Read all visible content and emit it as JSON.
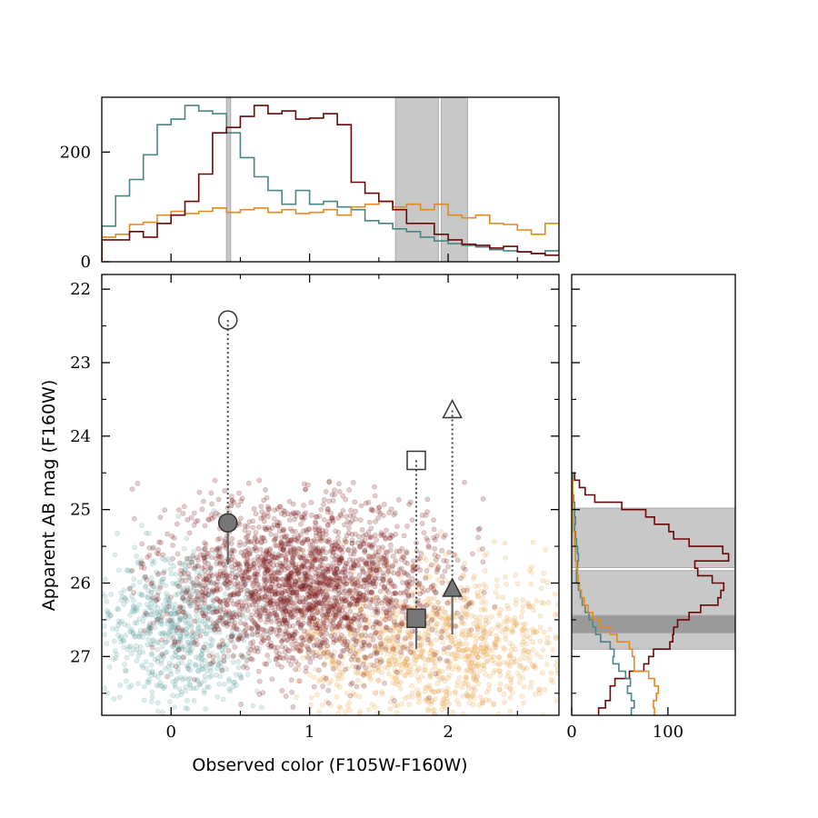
{
  "chart_data": [
    {
      "id": "main",
      "type": "scatter",
      "xlabel": "Observed color (F105W-F160W)",
      "ylabel": "Apparent AB mag (F160W)",
      "xlim": [
        -0.5,
        2.8
      ],
      "ylim": [
        27.8,
        21.8
      ],
      "inverted_y": true,
      "xticks": [
        0,
        1,
        2
      ],
      "yticks": [
        22,
        23,
        24,
        25,
        26,
        27
      ],
      "xtick_labels": [
        "0",
        "1",
        "2"
      ],
      "ytick_labels": [
        "22",
        "23",
        "24",
        "25",
        "26",
        "27"
      ],
      "point_clouds": [
        {
          "color": "#5f9ea0",
          "n": 700,
          "center": [
            0.05,
            26.6
          ],
          "spread": [
            0.28,
            0.55
          ],
          "xrange": [
            -0.5,
            0.8
          ],
          "yrange": [
            24.8,
            27.8
          ]
        },
        {
          "color": "#e8a040",
          "n": 1100,
          "center": [
            1.9,
            26.9
          ],
          "spread": [
            0.55,
            0.55
          ],
          "xrange": [
            0.9,
            2.8
          ],
          "yrange": [
            25.2,
            27.8
          ]
        },
        {
          "color": "#7a1a1a",
          "n": 2300,
          "center": [
            0.95,
            26.0
          ],
          "spread": [
            0.5,
            0.55
          ],
          "xrange": [
            -0.3,
            2.4
          ],
          "yrange": [
            24.6,
            27.8
          ]
        }
      ],
      "markers": [
        {
          "shape": "circle",
          "x": 0.41,
          "y_open": 22.42,
          "y_filled": 25.18,
          "y_err_end": 25.75,
          "filled_dir": "down"
        },
        {
          "shape": "square",
          "x": 1.77,
          "y_open": 24.33,
          "y_filled": 26.48,
          "y_err_end": 26.9,
          "filled_dir": "down"
        },
        {
          "shape": "triangle",
          "x": 2.03,
          "y_open": 23.65,
          "y_filled": 26.08,
          "y_err_end": 26.7,
          "filled_dir": "up"
        }
      ]
    },
    {
      "id": "top",
      "type": "histogram",
      "xlim": [
        -0.5,
        2.8
      ],
      "ylim": [
        0,
        300
      ],
      "yticks": [
        0,
        200
      ],
      "ytick_labels": [
        "0",
        "200"
      ],
      "bin_edges": [
        -0.5,
        -0.4,
        -0.3,
        -0.2,
        -0.1,
        0.0,
        0.1,
        0.2,
        0.3,
        0.4,
        0.5,
        0.6,
        0.7,
        0.8,
        0.9,
        1.0,
        1.1,
        1.2,
        1.3,
        1.4,
        1.5,
        1.6,
        1.7,
        1.8,
        1.9,
        2.0,
        2.1,
        2.2,
        2.3,
        2.4,
        2.5,
        2.6,
        2.7,
        2.8
      ],
      "series": [
        {
          "color": "#4a8585",
          "values": [
            65,
            120,
            150,
            195,
            250,
            260,
            285,
            275,
            270,
            235,
            190,
            155,
            130,
            105,
            130,
            105,
            110,
            100,
            95,
            75,
            70,
            60,
            55,
            45,
            38,
            33,
            30,
            27,
            22,
            20,
            18,
            15,
            20
          ]
        },
        {
          "color": "#e08a20",
          "values": [
            45,
            50,
            68,
            72,
            85,
            92,
            88,
            92,
            98,
            90,
            95,
            98,
            90,
            95,
            88,
            90,
            95,
            85,
            100,
            105,
            110,
            100,
            105,
            95,
            105,
            85,
            80,
            85,
            70,
            68,
            58,
            50,
            70
          ]
        },
        {
          "color": "#6a0808",
          "values": [
            40,
            40,
            55,
            45,
            70,
            85,
            110,
            160,
            235,
            245,
            265,
            285,
            270,
            275,
            260,
            262,
            270,
            250,
            145,
            125,
            110,
            95,
            70,
            70,
            50,
            40,
            32,
            30,
            25,
            28,
            18,
            15,
            12
          ]
        }
      ],
      "shaded_bands": [
        [
          0.4,
          0.43
        ],
        [
          1.62,
          1.93
        ],
        [
          1.95,
          2.14
        ]
      ]
    },
    {
      "id": "right",
      "type": "histogram",
      "orientation": "horizontal",
      "xlim": [
        0,
        170
      ],
      "xticks": [
        0,
        100
      ],
      "xtick_labels": [
        "0",
        "100"
      ],
      "ylim": [
        27.8,
        21.8
      ],
      "bin_edges": [
        24.5,
        24.6,
        24.7,
        24.8,
        24.9,
        25.0,
        25.1,
        25.2,
        25.3,
        25.4,
        25.5,
        25.6,
        25.7,
        25.8,
        25.9,
        26.0,
        26.1,
        26.2,
        26.3,
        26.4,
        26.5,
        26.6,
        26.7,
        26.8,
        26.9,
        27.0,
        27.1,
        27.2,
        27.3,
        27.4,
        27.5,
        27.6,
        27.7,
        27.8
      ],
      "series": [
        {
          "color": "#6a0808",
          "values": [
            3,
            8,
            14,
            24,
            52,
            77,
            86,
            101,
            106,
            122,
            157,
            163,
            128,
            131,
            146,
            158,
            155,
            152,
            134,
            122,
            110,
            106,
            105,
            102,
            85,
            80,
            75,
            60,
            45,
            40,
            40,
            35,
            28
          ]
        },
        {
          "color": "#4a8585",
          "values": [
            1,
            1,
            1,
            2,
            3,
            3,
            4,
            3,
            4,
            5,
            6,
            7,
            6,
            5,
            5,
            7,
            9,
            11,
            14,
            18,
            22,
            25,
            30,
            40,
            44,
            43,
            49,
            56,
            61,
            58,
            62,
            65,
            62
          ]
        },
        {
          "color": "#e08a20",
          "values": [
            0,
            1,
            1,
            1,
            1,
            2,
            2,
            2,
            3,
            3,
            4,
            4,
            5,
            6,
            7,
            8,
            10,
            13,
            17,
            22,
            30,
            40,
            47,
            60,
            63,
            65,
            65,
            80,
            86,
            90,
            88,
            85,
            86
          ]
        }
      ],
      "shaded_bands": [
        {
          "range": [
            24.98,
            25.79
          ],
          "level": "light"
        },
        {
          "range": [
            25.83,
            26.9
          ],
          "level": "light"
        },
        {
          "range": [
            26.44,
            26.68
          ],
          "level": "dark"
        }
      ]
    }
  ],
  "colors": {
    "teal": "#5f9ea0",
    "orange": "#e8a040",
    "maroon": "#7a1a1a",
    "marker": "#666666",
    "band": "#c8c8c8",
    "band_dark": "#9a9a9a"
  }
}
